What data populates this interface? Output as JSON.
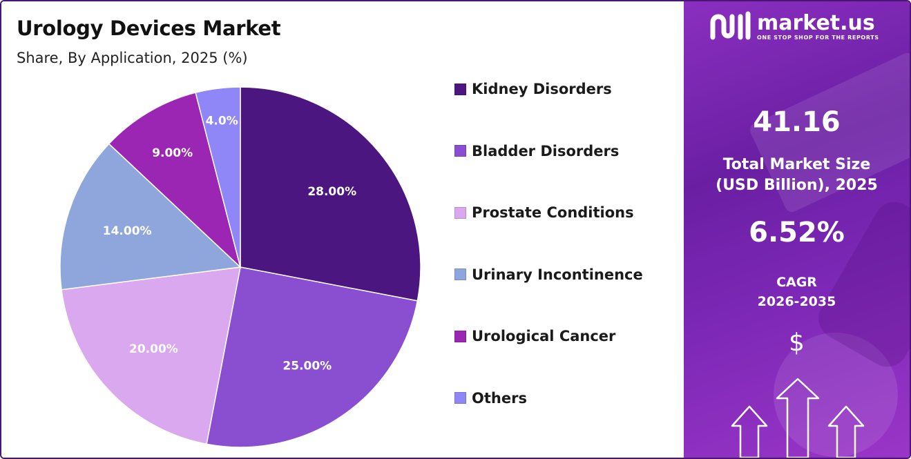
{
  "header": {
    "title": "Urology Devices Market",
    "subtitle": "Share, By Application, 2025 (%)"
  },
  "chart_data": {
    "type": "pie",
    "title": "Urology Devices Market",
    "subtitle": "Share, By Application, 2025 (%)",
    "legend_position": "right",
    "slices": [
      {
        "name": "Kidney Disorders",
        "value": 28.0,
        "label": "28.00%",
        "color": "#4c1680"
      },
      {
        "name": "Bladder Disorders",
        "value": 25.0,
        "label": "25.00%",
        "color": "#8a4fd1"
      },
      {
        "name": "Prostate Conditions",
        "value": 20.0,
        "label": "20.00%",
        "color": "#d9a8ef"
      },
      {
        "name": "Urinary Incontinence",
        "value": 14.0,
        "label": "14.00%",
        "color": "#8fa6dc"
      },
      {
        "name": "Urological Cancer",
        "value": 9.0,
        "label": "9.00%",
        "color": "#9b26b3"
      },
      {
        "name": "Others",
        "value": 4.0,
        "label": "4.0%",
        "color": "#8f86f7"
      }
    ]
  },
  "brand": {
    "name": "market.us",
    "tagline": "ONE STOP SHOP FOR THE REPORTS"
  },
  "stats": {
    "market_size_value": "41.16",
    "market_size_caption_line1": "Total Market Size",
    "market_size_caption_line2": "(USD Billion), 2025",
    "cagr_value": "6.52%",
    "cagr_caption_line1": "CAGR",
    "cagr_caption_line2": "2026-2035",
    "currency_symbol": "$"
  },
  "icons": {
    "logo": "market-us-logo-icon",
    "growth_arrows": "up-arrows-icon"
  }
}
